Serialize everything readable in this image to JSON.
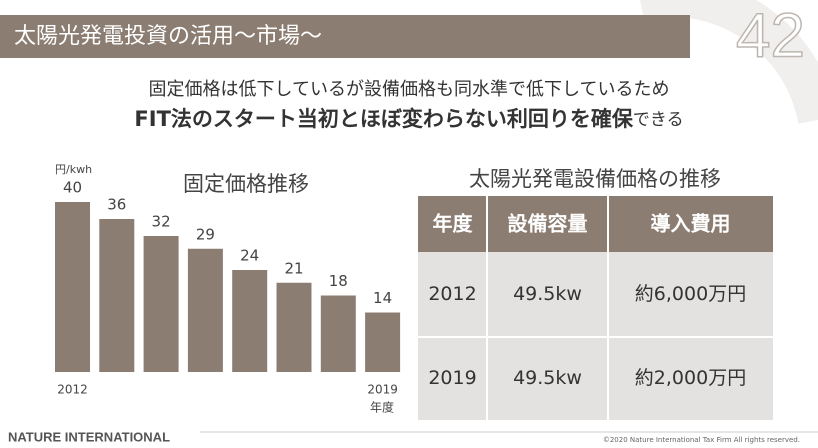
{
  "header": {
    "title": "太陽光発電投資の活用〜市場〜",
    "page_number": "42"
  },
  "subtitle": {
    "line1": "固定価格は低下しているが設備価格も同水準で低下しているため",
    "line2_bold": "FIT法のスタート当初とほぼ変わらない利回りを確保",
    "line2_rest": "できる"
  },
  "chart_data": {
    "type": "bar",
    "title": "固定価格推移",
    "unit_label": "円/kwh",
    "x_label": "年度",
    "categories": [
      "2012",
      null,
      null,
      null,
      null,
      null,
      null,
      "2019"
    ],
    "values": [
      40,
      36,
      32,
      29,
      24,
      21,
      18,
      14
    ],
    "color": "#8c7d72"
  },
  "table": {
    "title": "太陽光発電設備価格の推移",
    "header": [
      "年度",
      "設備容量",
      "導入費用"
    ],
    "rows": [
      [
        "2012",
        "49.5kw",
        "約6,000万円"
      ],
      [
        "2019",
        "49.5kw",
        "約2,000万円"
      ]
    ]
  },
  "footer": {
    "brand": "NATURE INTERNATIONAL",
    "copyright": "©2020 Nature International Tax Firm All rights reserved."
  }
}
